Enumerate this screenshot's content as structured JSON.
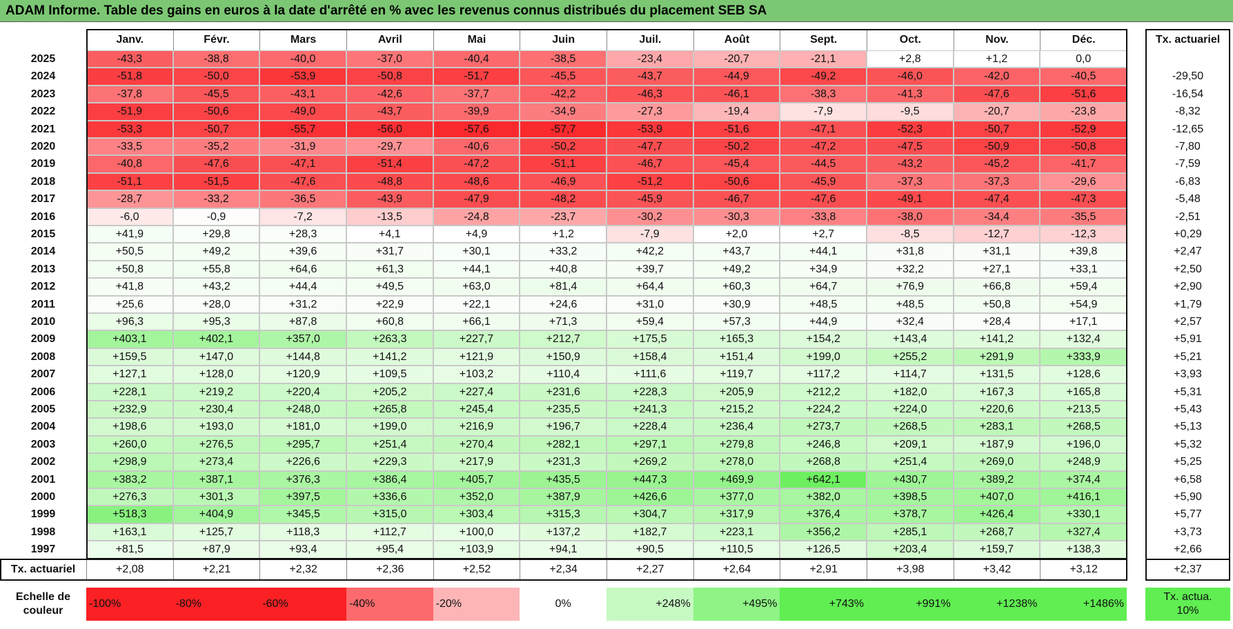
{
  "title": "ADAM Informe. Table des gains en euros à la date d'arrêté en % avec les revenus connus distribués du placement SEB SA",
  "header": {
    "months": [
      "Janv.",
      "Févr.",
      "Mars",
      "Avril",
      "Mai",
      "Juin",
      "Juil.",
      "Août",
      "Sept.",
      "Oct.",
      "Nov.",
      "Déc."
    ],
    "tx": "Tx. actuariel"
  },
  "rows": [
    {
      "year": "2025",
      "values": [
        "-43,3",
        "-38,8",
        "-40,0",
        "-37,0",
        "-40,4",
        "-38,5",
        "-23,4",
        "-20,7",
        "-21,1",
        "+2,8",
        "+1,2",
        "0,0"
      ]
    },
    {
      "year": "2024",
      "values": [
        "-51,8",
        "-50,0",
        "-53,9",
        "-50,8",
        "-51,7",
        "-45,5",
        "-43,7",
        "-44,9",
        "-49,2",
        "-46,0",
        "-42,0",
        "-40,5"
      ],
      "tx": "-29,50"
    },
    {
      "year": "2023",
      "values": [
        "-37,8",
        "-45,5",
        "-43,1",
        "-42,6",
        "-37,7",
        "-42,2",
        "-46,3",
        "-46,1",
        "-38,3",
        "-41,3",
        "-47,6",
        "-51,6"
      ],
      "tx": "-16,54"
    },
    {
      "year": "2022",
      "values": [
        "-51,9",
        "-50,6",
        "-49,0",
        "-43,7",
        "-39,9",
        "-34,9",
        "-27,3",
        "-19,4",
        "-7,9",
        "-9,5",
        "-20,7",
        "-23,8"
      ],
      "tx": "-8,32"
    },
    {
      "year": "2021",
      "values": [
        "-53,3",
        "-50,7",
        "-55,7",
        "-56,0",
        "-57,6",
        "-57,7",
        "-53,9",
        "-51,6",
        "-47,1",
        "-52,3",
        "-50,7",
        "-52,9"
      ],
      "tx": "-12,65"
    },
    {
      "year": "2020",
      "values": [
        "-33,5",
        "-35,2",
        "-31,9",
        "-29,7",
        "-40,6",
        "-50,2",
        "-47,7",
        "-50,2",
        "-47,2",
        "-47,5",
        "-50,9",
        "-50,8"
      ],
      "tx": "-7,80"
    },
    {
      "year": "2019",
      "values": [
        "-40,8",
        "-47,6",
        "-47,1",
        "-51,4",
        "-47,2",
        "-51,1",
        "-46,7",
        "-45,4",
        "-44,5",
        "-43,2",
        "-45,2",
        "-41,7"
      ],
      "tx": "-7,59"
    },
    {
      "year": "2018",
      "values": [
        "-51,1",
        "-51,5",
        "-47,6",
        "-48,8",
        "-48,6",
        "-46,9",
        "-51,2",
        "-50,6",
        "-45,9",
        "-37,3",
        "-37,3",
        "-29,6"
      ],
      "tx": "-6,83"
    },
    {
      "year": "2017",
      "values": [
        "-28,7",
        "-33,2",
        "-36,5",
        "-43,9",
        "-47,9",
        "-48,2",
        "-45,9",
        "-46,7",
        "-47,6",
        "-49,1",
        "-47,4",
        "-47,3"
      ],
      "tx": "-5,48"
    },
    {
      "year": "2016",
      "values": [
        "-6,0",
        "-0,9",
        "-7,2",
        "-13,5",
        "-24,8",
        "-23,7",
        "-30,2",
        "-30,3",
        "-33,8",
        "-38,0",
        "-34,4",
        "-35,5"
      ],
      "tx": "-2,51"
    },
    {
      "year": "2015",
      "values": [
        "+41,9",
        "+29,8",
        "+28,3",
        "+4,1",
        "+4,9",
        "+1,2",
        "-7,9",
        "+2,0",
        "+2,7",
        "-8,5",
        "-12,7",
        "-12,3"
      ],
      "tx": "+0,29"
    },
    {
      "year": "2014",
      "values": [
        "+50,5",
        "+49,2",
        "+39,6",
        "+31,7",
        "+30,1",
        "+33,2",
        "+42,2",
        "+43,7",
        "+44,1",
        "+31,8",
        "+31,1",
        "+39,8"
      ],
      "tx": "+2,47"
    },
    {
      "year": "2013",
      "values": [
        "+50,8",
        "+55,8",
        "+64,6",
        "+61,3",
        "+44,1",
        "+40,8",
        "+39,7",
        "+49,2",
        "+34,9",
        "+32,2",
        "+27,1",
        "+33,1"
      ],
      "tx": "+2,50"
    },
    {
      "year": "2012",
      "values": [
        "+41,8",
        "+43,2",
        "+44,4",
        "+49,5",
        "+63,0",
        "+81,4",
        "+64,4",
        "+60,3",
        "+64,7",
        "+76,9",
        "+66,8",
        "+59,4"
      ],
      "tx": "+2,90"
    },
    {
      "year": "2011",
      "values": [
        "+25,6",
        "+28,0",
        "+31,2",
        "+22,9",
        "+22,1",
        "+24,6",
        "+31,0",
        "+30,9",
        "+48,5",
        "+48,5",
        "+50,8",
        "+54,9"
      ],
      "tx": "+1,79"
    },
    {
      "year": "2010",
      "values": [
        "+96,3",
        "+95,3",
        "+87,8",
        "+60,8",
        "+66,1",
        "+71,3",
        "+59,4",
        "+57,3",
        "+44,9",
        "+32,4",
        "+28,4",
        "+17,1"
      ],
      "tx": "+2,57"
    },
    {
      "year": "2009",
      "values": [
        "+403,1",
        "+402,1",
        "+357,0",
        "+263,3",
        "+227,7",
        "+212,7",
        "+175,5",
        "+165,3",
        "+154,2",
        "+143,4",
        "+141,2",
        "+132,4"
      ],
      "tx": "+5,91"
    },
    {
      "year": "2008",
      "values": [
        "+159,5",
        "+147,0",
        "+144,8",
        "+141,2",
        "+121,9",
        "+150,9",
        "+158,4",
        "+151,4",
        "+199,0",
        "+255,2",
        "+291,9",
        "+333,9"
      ],
      "tx": "+5,21"
    },
    {
      "year": "2007",
      "values": [
        "+127,1",
        "+128,0",
        "+120,9",
        "+109,5",
        "+103,2",
        "+110,4",
        "+111,6",
        "+119,7",
        "+117,2",
        "+114,7",
        "+131,5",
        "+128,6"
      ],
      "tx": "+3,93"
    },
    {
      "year": "2006",
      "values": [
        "+228,1",
        "+219,2",
        "+220,4",
        "+205,2",
        "+227,4",
        "+231,6",
        "+228,3",
        "+205,9",
        "+212,2",
        "+182,0",
        "+167,3",
        "+165,8"
      ],
      "tx": "+5,31"
    },
    {
      "year": "2005",
      "values": [
        "+232,9",
        "+230,4",
        "+248,0",
        "+265,8",
        "+245,4",
        "+235,5",
        "+241,3",
        "+215,2",
        "+224,2",
        "+224,0",
        "+220,6",
        "+213,5"
      ],
      "tx": "+5,43"
    },
    {
      "year": "2004",
      "values": [
        "+198,6",
        "+193,0",
        "+181,0",
        "+199,0",
        "+216,9",
        "+196,7",
        "+228,4",
        "+236,4",
        "+273,7",
        "+268,5",
        "+283,1",
        "+268,5"
      ],
      "tx": "+5,13"
    },
    {
      "year": "2003",
      "values": [
        "+260,0",
        "+276,5",
        "+295,7",
        "+251,4",
        "+270,4",
        "+282,1",
        "+297,1",
        "+279,8",
        "+246,8",
        "+209,1",
        "+187,9",
        "+196,0"
      ],
      "tx": "+5,32"
    },
    {
      "year": "2002",
      "values": [
        "+298,9",
        "+273,4",
        "+226,6",
        "+229,3",
        "+217,9",
        "+231,3",
        "+269,2",
        "+278,0",
        "+268,8",
        "+251,4",
        "+269,0",
        "+248,9"
      ],
      "tx": "+5,25"
    },
    {
      "year": "2001",
      "values": [
        "+383,2",
        "+387,1",
        "+376,3",
        "+386,4",
        "+405,7",
        "+435,5",
        "+447,3",
        "+469,9",
        "+642,1",
        "+430,7",
        "+389,2",
        "+374,4"
      ],
      "tx": "+6,58"
    },
    {
      "year": "2000",
      "values": [
        "+276,3",
        "+301,3",
        "+397,5",
        "+336,6",
        "+352,0",
        "+387,9",
        "+426,6",
        "+377,0",
        "+382,0",
        "+398,5",
        "+407,0",
        "+416,1"
      ],
      "tx": "+5,90"
    },
    {
      "year": "1999",
      "values": [
        "+518,3",
        "+404,9",
        "+345,5",
        "+315,0",
        "+303,4",
        "+315,3",
        "+304,7",
        "+317,9",
        "+376,4",
        "+378,7",
        "+426,4",
        "+330,1"
      ],
      "tx": "+5,77"
    },
    {
      "year": "1998",
      "values": [
        "+163,1",
        "+125,7",
        "+118,3",
        "+112,7",
        "+100,0",
        "+137,2",
        "+182,7",
        "+223,1",
        "+356,2",
        "+285,1",
        "+268,7",
        "+327,4"
      ],
      "tx": "+3,73"
    },
    {
      "year": "1997",
      "values": [
        "+81,5",
        "+87,9",
        "+93,4",
        "+95,4",
        "+103,9",
        "+94,1",
        "+90,5",
        "+110,5",
        "+126,5",
        "+203,4",
        "+159,7",
        "+138,3"
      ],
      "tx": "+2,66"
    }
  ],
  "footer": {
    "label": "Tx. actuariel",
    "values": [
      "+2,08",
      "+2,21",
      "+2,32",
      "+2,36",
      "+2,52",
      "+2,34",
      "+2,27",
      "+2,64",
      "+2,91",
      "+3,98",
      "+3,42",
      "+3,12"
    ],
    "tx": "+2,37"
  },
  "legend": {
    "label": "Echelle de couleur",
    "steps": [
      "-100%",
      "-80%",
      "-60%",
      "-40%",
      "-20%",
      "0%",
      "+248%",
      "+495%",
      "+743%",
      "+991%",
      "+1238%",
      "+1486%"
    ],
    "tx": "Tx. actua. 10%"
  }
}
